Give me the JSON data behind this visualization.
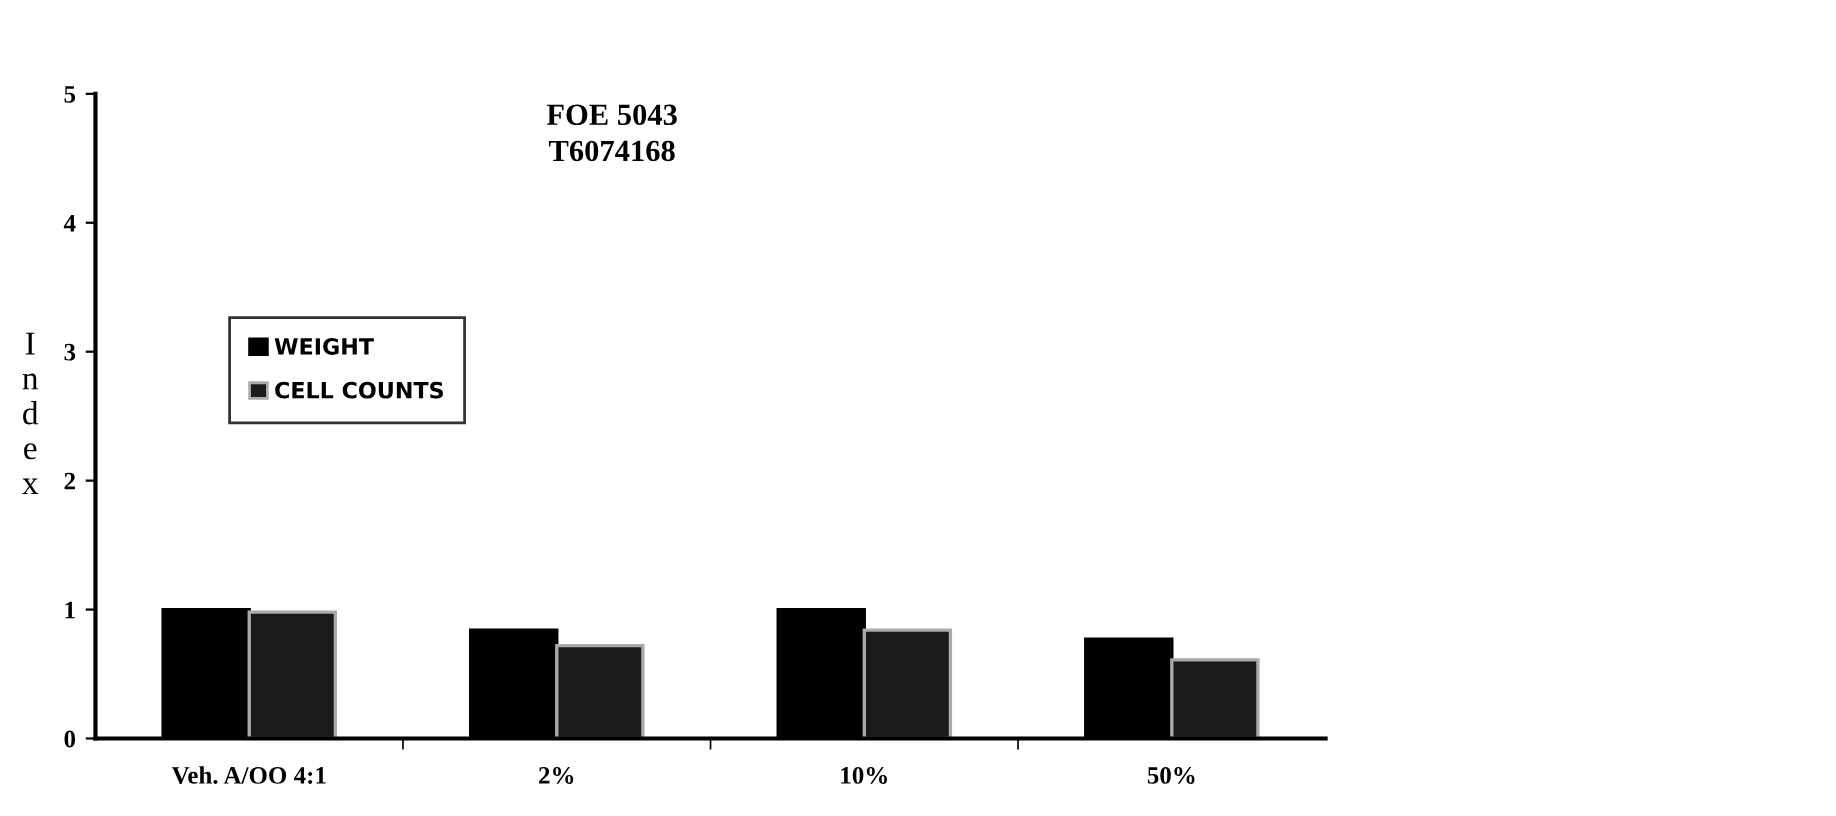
{
  "chart_data": {
    "type": "bar",
    "title": "FOE 5043\nT6074168",
    "ylabel": "Index",
    "categories": [
      "Veh. A/OO 4:1",
      "2%",
      "10%",
      "50%"
    ],
    "series": [
      {
        "name": "WEIGHT",
        "color": "#000000",
        "values": [
          1.0,
          0.84,
          1.0,
          0.77
        ]
      },
      {
        "name": "CELL COUNTS",
        "color": "#1a1a1a",
        "values": [
          0.98,
          0.72,
          0.84,
          0.61
        ]
      }
    ],
    "ylim": [
      0,
      5
    ],
    "yticks": [
      0,
      1,
      2,
      3,
      4,
      5
    ],
    "grid": false,
    "legend": "top left"
  }
}
